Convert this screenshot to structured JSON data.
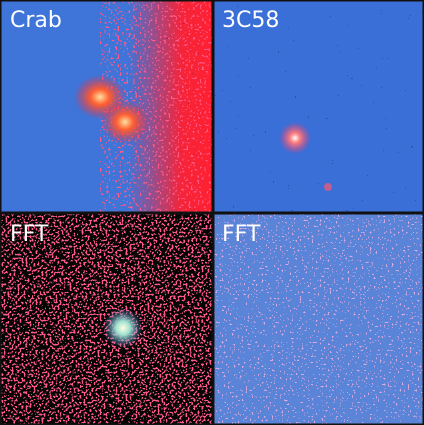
{
  "panels": [
    {
      "label": "Crab"
    },
    {
      "label": "3C58"
    },
    {
      "label": "FFT"
    },
    {
      "label": "FFT"
    }
  ]
}
